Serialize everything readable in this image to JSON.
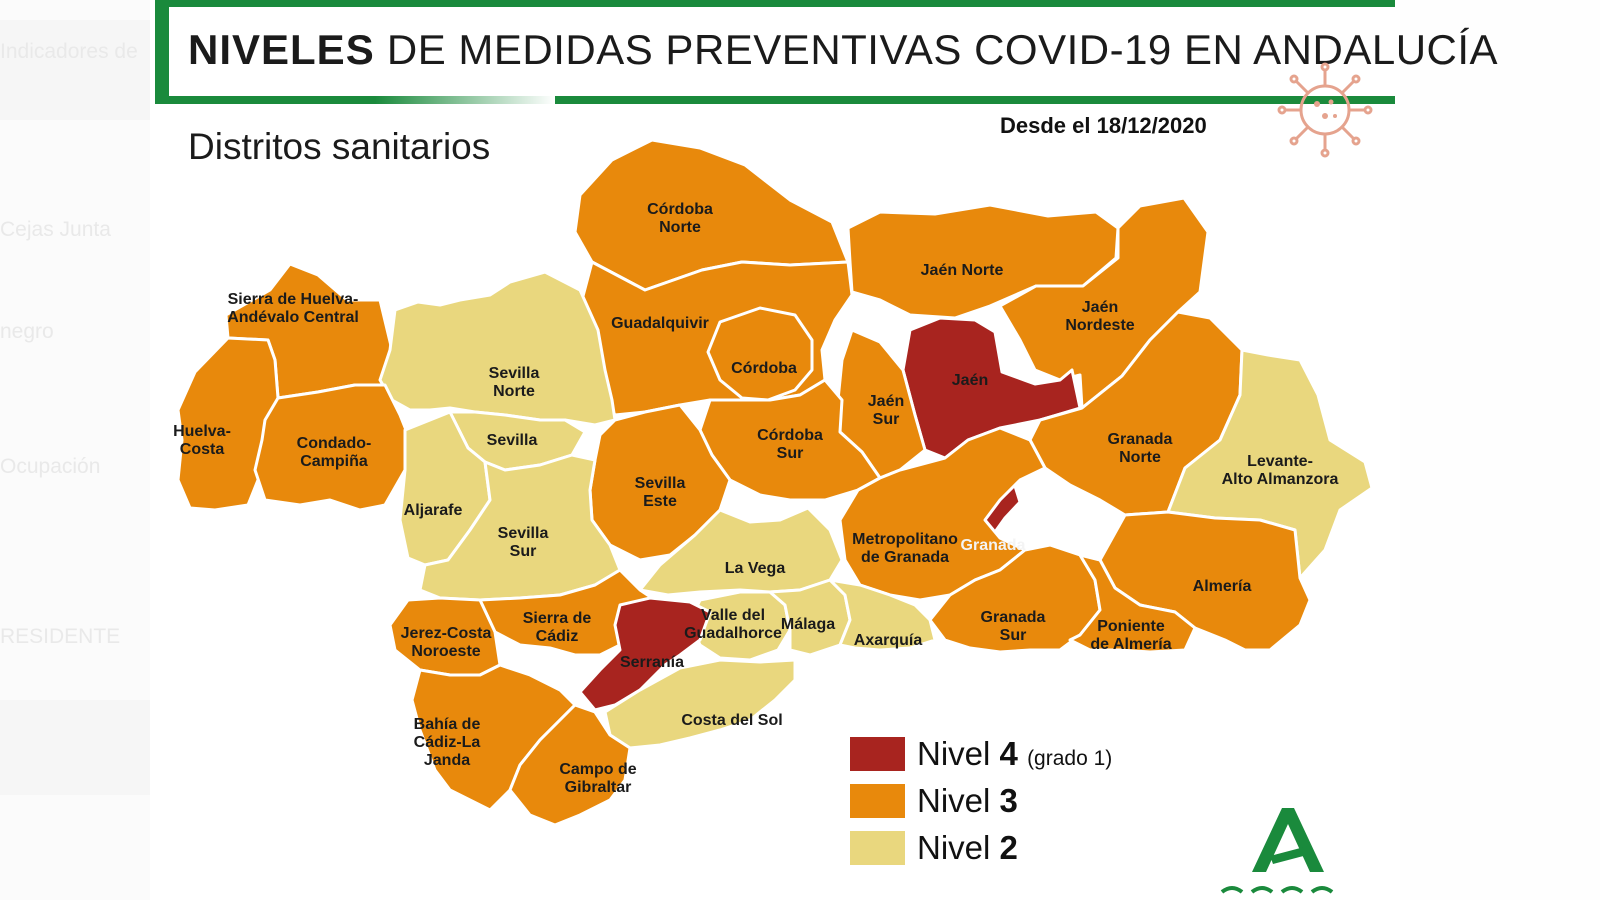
{
  "background_panel": {
    "ghost_texts": [
      "Indicadores de",
      "Cejas Junta",
      "negro",
      "Ocupación",
      "RESIDENTE"
    ]
  },
  "header": {
    "title_bold": "NIVELES",
    "title_rest": "DE MEDIDAS PREVENTIVAS COVID-19 EN ANDALUCÍA",
    "subtitle": "Distritos sanitarios",
    "date": "Desde el 18/12/2020"
  },
  "colors": {
    "nivel4": "#a8241f",
    "nivel3": "#e8890c",
    "nivel2": "#e9d77e",
    "accent_green": "#1a8a3c",
    "virus": "#e5a38e"
  },
  "districts": [
    {
      "name": "Córdoba Norte",
      "lines": [
        "Córdoba",
        "Norte"
      ],
      "level": 3
    },
    {
      "name": "Jaén Norte",
      "lines": [
        "Jaén Norte"
      ],
      "level": 3
    },
    {
      "name": "Jaén Nordeste",
      "lines": [
        "Jaén",
        "Nordeste"
      ],
      "level": 3
    },
    {
      "name": "Sierra de Huelva-Andévalo Central",
      "lines": [
        "Sierra de Huelva-",
        "Andévalo Central"
      ],
      "level": 3
    },
    {
      "name": "Guadalquivir",
      "lines": [
        "Guadalquivir"
      ],
      "level": 3
    },
    {
      "name": "Córdoba",
      "lines": [
        "Córdoba"
      ],
      "level": 3
    },
    {
      "name": "Sevilla Norte",
      "lines": [
        "Sevilla",
        "Norte"
      ],
      "level": 2
    },
    {
      "name": "Jaén",
      "lines": [
        "Jaén"
      ],
      "level": 4
    },
    {
      "name": "Jaén Sur",
      "lines": [
        "Jaén",
        "Sur"
      ],
      "level": 3
    },
    {
      "name": "Huelva-Costa",
      "lines": [
        "Huelva-",
        "Costa"
      ],
      "level": 3
    },
    {
      "name": "Condado-Campiña",
      "lines": [
        "Condado-",
        "Campiña"
      ],
      "level": 3
    },
    {
      "name": "Sevilla",
      "lines": [
        "Sevilla"
      ],
      "level": 2
    },
    {
      "name": "Córdoba Sur",
      "lines": [
        "Córdoba",
        "Sur"
      ],
      "level": 3
    },
    {
      "name": "Granada Norte",
      "lines": [
        "Granada",
        "Norte"
      ],
      "level": 3
    },
    {
      "name": "Levante-Alto Almanzora",
      "lines": [
        "Levante-",
        "Alto Almanzora"
      ],
      "level": 2
    },
    {
      "name": "Sevilla Este",
      "lines": [
        "Sevilla",
        "Este"
      ],
      "level": 3
    },
    {
      "name": "Aljarafe",
      "lines": [
        "Aljarafe"
      ],
      "level": 2
    },
    {
      "name": "Sevilla Sur",
      "lines": [
        "Sevilla",
        "Sur"
      ],
      "level": 2
    },
    {
      "name": "Granada",
      "lines": [
        "Granada"
      ],
      "level": 4
    },
    {
      "name": "Metropolitano de Granada",
      "lines": [
        "Metropolitano",
        "de Granada"
      ],
      "level": 3
    },
    {
      "name": "La Vega",
      "lines": [
        "La Vega"
      ],
      "level": 2
    },
    {
      "name": "Almería",
      "lines": [
        "Almería"
      ],
      "level": 3
    },
    {
      "name": "Sierra de Cádiz",
      "lines": [
        "Sierra de",
        "Cádiz"
      ],
      "level": 3
    },
    {
      "name": "Valle del Guadalhorce",
      "lines": [
        "Valle del",
        "Guadalhorce"
      ],
      "level": 2
    },
    {
      "name": "Málaga",
      "lines": [
        "Málaga"
      ],
      "level": 2
    },
    {
      "name": "Axarquía",
      "lines": [
        "Axarquía"
      ],
      "level": 2
    },
    {
      "name": "Granada Sur",
      "lines": [
        "Granada",
        "Sur"
      ],
      "level": 3
    },
    {
      "name": "Poniente de Almería",
      "lines": [
        "Poniente",
        "de Almería"
      ],
      "level": 3
    },
    {
      "name": "Jerez-Costa Noroeste",
      "lines": [
        "Jerez-Costa",
        "Noroeste"
      ],
      "level": 3
    },
    {
      "name": "Serranía",
      "lines": [
        "Serranía"
      ],
      "level": 4
    },
    {
      "name": "Costa del Sol",
      "lines": [
        "Costa del Sol"
      ],
      "level": 2
    },
    {
      "name": "Bahía de Cádiz-La Janda",
      "lines": [
        "Bahía de",
        "Cádiz-La",
        "Janda"
      ],
      "level": 3
    },
    {
      "name": "Campo de Gibraltar",
      "lines": [
        "Campo de",
        "Gibraltar"
      ],
      "level": 3
    }
  ],
  "legend": {
    "items": [
      {
        "word": "Nivel",
        "number": "4",
        "note": "(grado 1)",
        "color": "#a8241f"
      },
      {
        "word": "Nivel",
        "number": "3",
        "note": "",
        "color": "#e8890c"
      },
      {
        "word": "Nivel",
        "number": "2",
        "note": "",
        "color": "#e9d77e"
      }
    ]
  }
}
